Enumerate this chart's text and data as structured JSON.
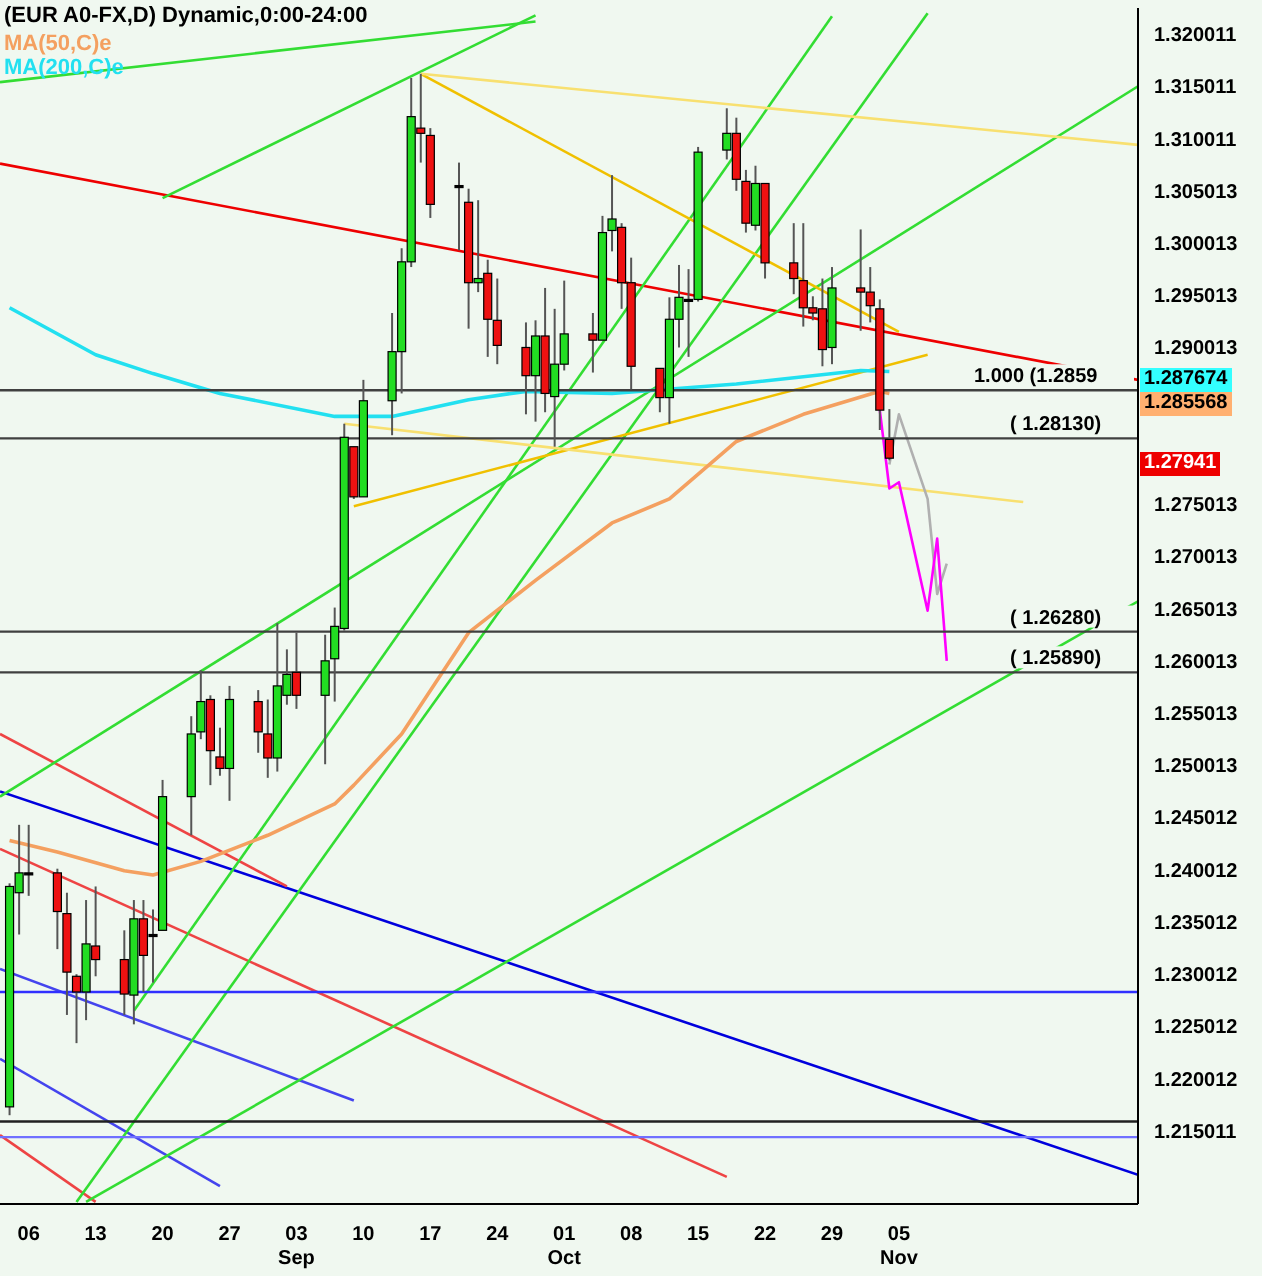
{
  "chart_data": {
    "type": "candlestick",
    "title": "(EUR A0-FX,D) Dynamic,0:00-24:00",
    "legend": "top left",
    "xlim": [
      "--08-03",
      "--11-30"
    ],
    "ylim": [
      1.208,
      1.3225
    ],
    "xticks": [
      {
        "value": "--08-06",
        "label": "06"
      },
      {
        "value": "--08-13",
        "label": "13"
      },
      {
        "value": "--08-20",
        "label": "20"
      },
      {
        "value": "--08-27",
        "label": "27"
      },
      {
        "value": "--09-03",
        "label": "03 Sep"
      },
      {
        "value": "--09-10",
        "label": "10"
      },
      {
        "value": "--09-17",
        "label": "17"
      },
      {
        "value": "--09-24",
        "label": "24"
      },
      {
        "value": "--10-01",
        "label": "01 Oct"
      },
      {
        "value": "--10-08",
        "label": "08"
      },
      {
        "value": "--10-15",
        "label": "15"
      },
      {
        "value": "--10-22",
        "label": "22"
      },
      {
        "value": "--10-29",
        "label": "29"
      },
      {
        "value": "--11-05",
        "label": "05 Nov"
      }
    ],
    "yticks": [
      1.320011,
      1.315011,
      1.310011,
      1.305013,
      1.300013,
      1.295013,
      1.290013,
      1.275013,
      1.270013,
      1.265013,
      1.260013,
      1.255013,
      1.250013,
      1.245012,
      1.240012,
      1.235012,
      1.230012,
      1.225012,
      1.220012,
      1.215011
    ],
    "x": [
      "--08-04",
      "--08-05",
      "--08-06",
      "--08-09",
      "--08-10",
      "--08-11",
      "--08-12",
      "--08-13",
      "--08-16",
      "--08-17",
      "--08-18",
      "--08-19",
      "--08-20",
      "--08-23",
      "--08-24",
      "--08-25",
      "--08-26",
      "--08-27",
      "--08-30",
      "--08-31",
      "--09-01",
      "--09-02",
      "--09-03",
      "--09-06",
      "--09-07",
      "--09-08",
      "--09-09",
      "--09-10",
      "--09-13",
      "--09-14",
      "--09-15",
      "--09-16",
      "--09-17",
      "--09-20",
      "--09-21",
      "--09-22",
      "--09-23",
      "--09-24",
      "--09-27",
      "--09-28",
      "--09-29",
      "--09-30",
      "--10-01",
      "--10-04",
      "--10-05",
      "--10-06",
      "--10-07",
      "--10-08",
      "--10-11",
      "--10-12",
      "--10-13",
      "--10-14",
      "--10-15",
      "--10-18",
      "--10-19",
      "--10-20",
      "--10-21",
      "--10-22",
      "--10-25",
      "--10-26",
      "--10-27",
      "--10-28",
      "--10-29",
      "--11-01",
      "--11-02",
      "--11-03",
      "--11-04"
    ],
    "ohlc": [
      [
        1.2173,
        1.2387,
        1.2165,
        1.2384
      ],
      [
        1.2378,
        1.2443,
        1.2338,
        1.2397
      ],
      [
        1.2397,
        1.2443,
        1.2375,
        1.2397
      ],
      [
        1.2397,
        1.2401,
        1.2324,
        1.236
      ],
      [
        1.2358,
        1.2378,
        1.2261,
        1.2302
      ],
      [
        1.2298,
        1.23,
        1.2234,
        1.2283
      ],
      [
        1.2283,
        1.2371,
        1.2256,
        1.2329
      ],
      [
        1.2327,
        1.2384,
        1.2298,
        1.2314
      ],
      [
        1.2314,
        1.2342,
        1.2261,
        1.2281
      ],
      [
        1.228,
        1.2371,
        1.2252,
        1.2353
      ],
      [
        1.2353,
        1.2371,
        1.2283,
        1.2318
      ],
      [
        1.2338,
        1.2362,
        1.2292,
        1.2338
      ],
      [
        1.2342,
        1.2486,
        1.2342,
        1.247
      ],
      [
        1.247,
        1.2547,
        1.2433,
        1.253
      ],
      [
        1.2532,
        1.2591,
        1.2525,
        1.2561
      ],
      [
        1.2563,
        1.2567,
        1.2481,
        1.2514
      ],
      [
        1.2508,
        1.2536,
        1.249,
        1.2497
      ],
      [
        1.2497,
        1.2576,
        1.2466,
        1.2563
      ],
      [
        1.2561,
        1.2572,
        1.2512,
        1.2532
      ],
      [
        1.253,
        1.2563,
        1.2488,
        1.2507
      ],
      [
        1.2507,
        1.2636,
        1.2494,
        1.2576
      ],
      [
        1.2567,
        1.2611,
        1.2558,
        1.2587
      ],
      [
        1.2589,
        1.2627,
        1.2554,
        1.2567
      ],
      [
        1.2567,
        1.2625,
        1.2501,
        1.26
      ],
      [
        1.2602,
        1.2651,
        1.2561,
        1.2633
      ],
      [
        1.2631,
        1.2827,
        1.2629,
        1.2814
      ],
      [
        1.2805,
        1.2805,
        1.2755,
        1.2757
      ],
      [
        1.2757,
        1.2869,
        1.2757,
        1.2849
      ],
      [
        1.2849,
        1.2933,
        1.2816,
        1.2896
      ],
      [
        1.2896,
        1.2995,
        1.2856,
        1.2982
      ],
      [
        1.2982,
        1.3158,
        1.2977,
        1.3121
      ],
      [
        1.311,
        1.3162,
        1.3077,
        1.3105
      ],
      [
        1.3103,
        1.311,
        1.3024,
        1.3037
      ],
      [
        1.3055,
        1.3077,
        1.2993,
        1.3055
      ],
      [
        1.3039,
        1.3052,
        1.2918,
        1.2962
      ],
      [
        1.2962,
        1.3041,
        1.2953,
        1.2966
      ],
      [
        1.2971,
        1.2984,
        1.2891,
        1.2927
      ],
      [
        1.2926,
        1.2966,
        1.2884,
        1.2902
      ],
      [
        1.29,
        1.2924,
        1.2836,
        1.2873
      ],
      [
        1.2873,
        1.2926,
        1.2829,
        1.2911
      ],
      [
        1.2911,
        1.2957,
        1.2838,
        1.2856
      ],
      [
        1.2853,
        1.2937,
        1.2805,
        1.2884
      ],
      [
        1.2884,
        1.2964,
        1.2878,
        1.2913
      ],
      [
        1.2913,
        1.2933,
        1.2876,
        1.2907
      ],
      [
        1.2907,
        1.3026,
        1.2907,
        1.301
      ],
      [
        1.3012,
        1.3065,
        1.2992,
        1.3023
      ],
      [
        1.3015,
        1.3019,
        1.2937,
        1.2962
      ],
      [
        1.2962,
        1.2986,
        1.286,
        1.2882
      ],
      [
        1.288,
        1.288,
        1.2838,
        1.2852
      ],
      [
        1.2852,
        1.2948,
        1.2827,
        1.2927
      ],
      [
        1.2927,
        1.2979,
        1.29,
        1.2948
      ],
      [
        1.2946,
        1.2975,
        1.2891,
        1.2946
      ],
      [
        1.2946,
        1.3092,
        1.2944,
        1.3087
      ],
      [
        1.3089,
        1.3129,
        1.308,
        1.3105
      ],
      [
        1.3105,
        1.312,
        1.305,
        1.3061
      ],
      [
        1.3059,
        1.307,
        1.301,
        1.3019
      ],
      [
        1.3017,
        1.3074,
        1.3012,
        1.3057
      ],
      [
        1.3057,
        1.3057,
        1.2966,
        1.2981
      ],
      [
        1.2981,
        1.3019,
        1.2951,
        1.2966
      ],
      [
        1.2964,
        1.3019,
        1.292,
        1.2938
      ],
      [
        1.2938,
        1.2949,
        1.2926,
        1.2933
      ],
      [
        1.2937,
        1.2966,
        1.2882,
        1.2898
      ],
      [
        1.29,
        1.2977,
        1.2884,
        1.2957
      ],
      [
        1.2957,
        1.3013,
        1.2916,
        1.2953
      ],
      [
        1.2953,
        1.2977,
        1.2924,
        1.294
      ],
      [
        1.2937,
        1.2946,
        1.2821,
        1.284
      ],
      [
        1.2812,
        1.2841,
        1.2792,
        1.2794
      ]
    ],
    "colors": [
      "#22dd22",
      "#22dd22",
      "#000000",
      "#ee1111",
      "#ee1111",
      "#ee1111",
      "#22dd22",
      "#ee1111",
      "#ee1111",
      "#22dd22",
      "#ee1111",
      "#000000",
      "#22dd22",
      "#22dd22",
      "#22dd22",
      "#ee1111",
      "#ee1111",
      "#22dd22",
      "#ee1111",
      "#ee1111",
      "#22dd22",
      "#22dd22",
      "#ee1111",
      "#22dd22",
      "#22dd22",
      "#22dd22",
      "#ee1111",
      "#22dd22",
      "#22dd22",
      "#22dd22",
      "#22dd22",
      "#ee1111",
      "#ee1111",
      "#000000",
      "#ee1111",
      "#22dd22",
      "#ee1111",
      "#ee1111",
      "#ee1111",
      "#22dd22",
      "#ee1111",
      "#22dd22",
      "#22dd22",
      "#ee1111",
      "#22dd22",
      "#22dd22",
      "#ee1111",
      "#ee1111",
      "#ee1111",
      "#22dd22",
      "#22dd22",
      "#000000",
      "#22dd22",
      "#22dd22",
      "#ee1111",
      "#ee1111",
      "#22dd22",
      "#ee1111",
      "#ee1111",
      "#ee1111",
      "#ee1111",
      "#ee1111",
      "#22dd22",
      "#ee1111",
      "#ee1111",
      "#ee1111",
      "#ee1111"
    ],
    "series": [
      {
        "type": "line",
        "color": "#ee0000",
        "x": [
          "--08-03",
          "--11-30"
        ],
        "values": [
          1.3076,
          1.2869
        ]
      },
      {
        "type": "line",
        "color": "#0000dd",
        "x": [
          "--08-03",
          "--11-30"
        ],
        "values": [
          1.2475,
          1.2108
        ]
      },
      {
        "type": "line",
        "color": "#ee4444",
        "x": [
          "--08-03",
          "--09-02"
        ],
        "values": [
          1.253,
          1.2384
        ]
      },
      {
        "type": "line",
        "color": "#ee4444",
        "x": [
          "--08-03",
          "--10-18"
        ],
        "values": [
          1.242,
          1.2106
        ]
      },
      {
        "type": "line",
        "color": "#ee4444",
        "x": [
          "--08-03",
          "--08-13"
        ],
        "values": [
          1.2146,
          1.2082
        ]
      },
      {
        "type": "line",
        "color": "#4444ee",
        "x": [
          "--08-03",
          "--09-09"
        ],
        "values": [
          1.2305,
          1.2179
        ]
      },
      {
        "type": "line",
        "color": "#4444ee",
        "x": [
          "--08-03",
          "--08-26"
        ],
        "values": [
          1.2219,
          1.2097
        ]
      },
      {
        "type": "line",
        "color": "#33dd33",
        "x": [
          "--08-03",
          "--11-30"
        ],
        "values": [
          1.247,
          1.315
        ]
      },
      {
        "type": "line",
        "color": "#33dd33",
        "x": [
          "--08-17",
          "--10-29"
        ],
        "values": [
          1.2265,
          1.3217
        ]
      },
      {
        "type": "line",
        "color": "#33dd33",
        "x": [
          "--08-11",
          "--11-08"
        ],
        "values": [
          1.2082,
          1.322
        ]
      },
      {
        "type": "line",
        "color": "#33dd33",
        "x": [
          "--08-12",
          "--11-30"
        ],
        "values": [
          1.2082,
          1.2657
        ]
      },
      {
        "type": "line",
        "color": "#33dd33",
        "x": [
          "--08-20",
          "--09-28"
        ],
        "values": [
          1.3043,
          1.3218
        ]
      },
      {
        "type": "line",
        "color": "#33dd33",
        "x": [
          "--08-03",
          "--09-28"
        ],
        "values": [
          1.3154,
          1.3212
        ]
      },
      {
        "type": "line",
        "color": "#f0c000",
        "x": [
          "--09-16",
          "--11-05"
        ],
        "values": [
          1.3162,
          1.2915
        ]
      },
      {
        "type": "line",
        "color": "#f8e070",
        "x": [
          "--09-16",
          "--11-30"
        ],
        "values": [
          1.3162,
          1.3094
        ]
      },
      {
        "type": "line",
        "color": "#f0c000",
        "x": [
          "--09-09",
          "--11-08"
        ],
        "values": [
          1.2748,
          1.2893
        ]
      },
      {
        "type": "line",
        "color": "#f8e070",
        "x": [
          "--09-08",
          "--11-18"
        ],
        "values": [
          1.2827,
          1.2752
        ]
      },
      {
        "type": "line",
        "name": "MA(50,C)e",
        "color": "#f4a060",
        "x": [
          "--08-04",
          "--08-09",
          "--08-16",
          "--08-19",
          "--08-24",
          "--08-31",
          "--09-07",
          "--09-09",
          "--09-14",
          "--09-21",
          "--09-28",
          "--10-06",
          "--10-12",
          "--10-19",
          "--10-26",
          "--11-03",
          "--11-04"
        ],
        "values": [
          1.2428,
          1.2417,
          1.2399,
          1.2395,
          1.2408,
          1.2433,
          1.2463,
          1.2481,
          1.253,
          1.2627,
          1.2677,
          1.2732,
          1.2755,
          1.281,
          1.2836,
          1.2858,
          1.2856
        ]
      },
      {
        "type": "line",
        "name": "MA(200,C)e",
        "color": "#22e0f0",
        "x": [
          "--08-04",
          "--08-13",
          "--08-19",
          "--08-26",
          "--09-07",
          "--09-13",
          "--09-21",
          "--09-27",
          "--10-06",
          "--10-19",
          "--11-01",
          "--11-04"
        ],
        "values": [
          1.2938,
          1.2893,
          1.2875,
          1.2856,
          1.2834,
          1.2834,
          1.285,
          1.2858,
          1.2856,
          1.2865,
          1.2878,
          1.2877
        ]
      },
      {
        "type": "line",
        "color": "#b0b0b0",
        "x": [
          "--11-04",
          "--11-05",
          "--11-08",
          "--11-09",
          "--11-10"
        ],
        "values": [
          1.2788,
          1.2836,
          1.2755,
          1.2664,
          1.2693
        ]
      },
      {
        "type": "line",
        "color": "#ff00ff",
        "x": [
          "--11-03",
          "--11-04",
          "--11-05",
          "--11-08",
          "--11-09",
          "--11-10"
        ],
        "values": [
          1.284,
          1.2765,
          1.2771,
          1.2648,
          1.2717,
          1.26
        ]
      }
    ],
    "ref_lines": [
      {
        "axis": "y",
        "value": 1.2859,
        "label": "1.000 (1.2859",
        "color": "#404040"
      },
      {
        "axis": "y",
        "value": 1.2813,
        "label": "( 1.28130)",
        "color": "#404040"
      },
      {
        "axis": "y",
        "value": 1.2628,
        "label": "( 1.26280)",
        "color": "#404040"
      },
      {
        "axis": "y",
        "value": 1.2589,
        "label": "( 1.25890)",
        "color": "#404040"
      },
      {
        "axis": "y",
        "value": 1.2283,
        "color": "#3030ff"
      },
      {
        "axis": "y",
        "value": 1.2159,
        "color": "#202020"
      },
      {
        "axis": "y",
        "value": 1.2144,
        "color": "#7070ff"
      }
    ],
    "annotations": [
      "1.287674",
      "1.285568",
      "1.27941"
    ]
  }
}
